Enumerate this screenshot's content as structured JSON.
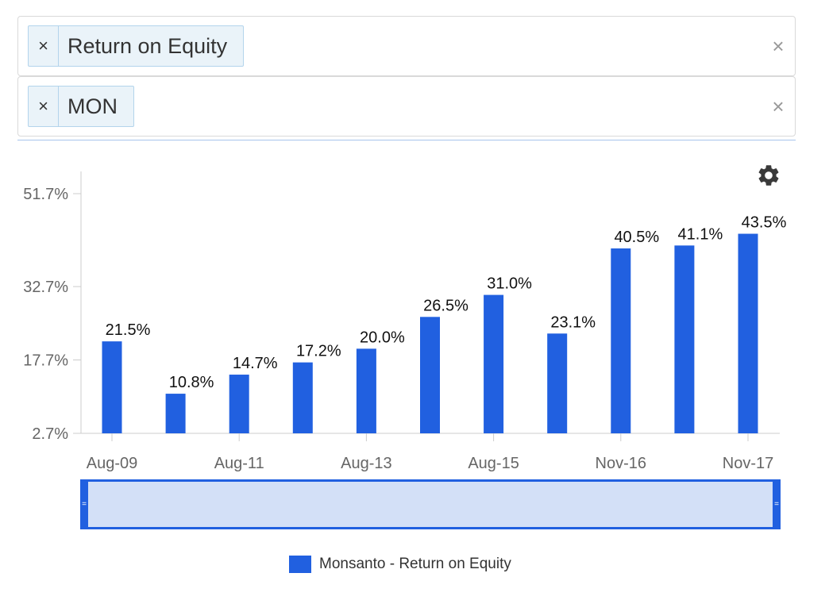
{
  "filters": {
    "metric": {
      "chip_label": "Return on Equity",
      "remove_icon": "×",
      "clear_icon": "×"
    },
    "ticker": {
      "chip_label": "MON",
      "remove_icon": "×",
      "clear_icon": "×"
    }
  },
  "colors": {
    "bar": "#2160e0",
    "axis": "#cccccc",
    "tick_text": "#666666",
    "chip_bg": "#eaf3f9"
  },
  "settings_icon": "gear-icon",
  "chart_data": {
    "type": "bar",
    "title": "",
    "xlabel": "",
    "ylabel": "",
    "y_ticks": [
      "51.7%",
      "32.7%",
      "17.7%",
      "2.7%"
    ],
    "ylim": [
      2.7,
      51.7
    ],
    "x_tick_labels": [
      "Aug-09",
      "Aug-11",
      "Aug-13",
      "Aug-15",
      "Nov-16",
      "Nov-17"
    ],
    "series": [
      {
        "name": "Monsanto - Return on Equity",
        "values": [
          21.5,
          10.8,
          14.7,
          17.2,
          20.0,
          26.5,
          31.0,
          23.1,
          40.5,
          41.1,
          43.5
        ],
        "labels": [
          "21.5%",
          "10.8%",
          "14.7%",
          "17.2%",
          "20.0%",
          "26.5%",
          "31.0%",
          "23.1%",
          "40.5%",
          "41.1%",
          "43.5%"
        ]
      }
    ],
    "grid": false,
    "legend": "bottom"
  }
}
